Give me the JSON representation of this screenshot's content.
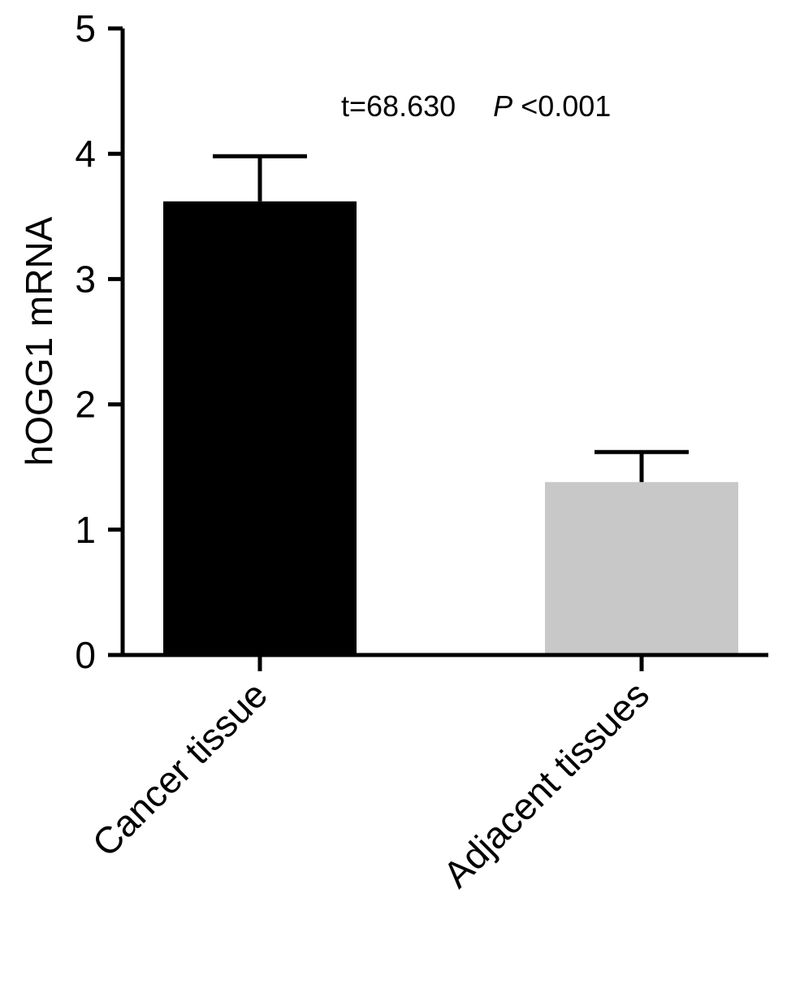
{
  "chart_data": {
    "type": "bar",
    "categories": [
      "Cancer tissue",
      "Adjacent tissues"
    ],
    "values": [
      3.62,
      1.38
    ],
    "error_upper": [
      3.98,
      1.62
    ],
    "colors": [
      "#000000",
      "#c8c8c8"
    ],
    "ylabel": "hOGG1 mRNA",
    "ylim": [
      0,
      5
    ],
    "yticks": [
      "0",
      "1",
      "2",
      "3",
      "4",
      "5"
    ],
    "annotation": {
      "t_text": "t=68.630",
      "p_symbol": "P",
      "p_text": "<0.001"
    },
    "grid": false
  }
}
